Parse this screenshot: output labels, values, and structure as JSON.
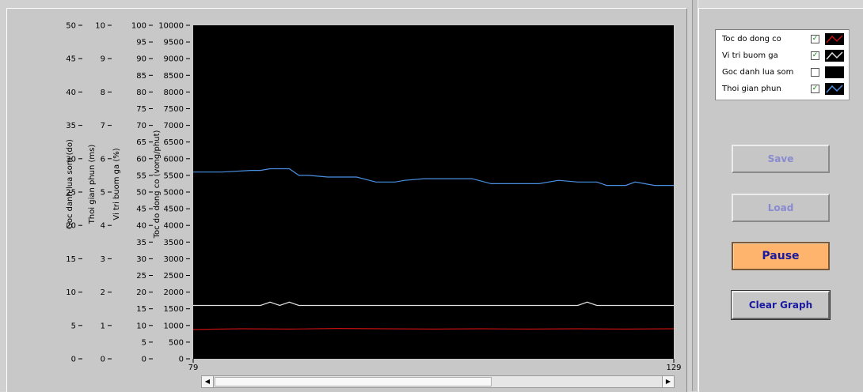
{
  "chart_data": {
    "type": "line",
    "x_range": [
      79,
      129
    ],
    "x_ticks": [
      "79",
      "129"
    ],
    "axes": [
      {
        "title": "Goc danh lua som (do)",
        "ticks": [
          "50",
          "45",
          "40",
          "35",
          "30",
          "25",
          "20",
          "15",
          "10",
          "5",
          "0"
        ],
        "range": [
          0,
          50
        ]
      },
      {
        "title": "Thoi gian phun (ms)",
        "ticks": [
          "10",
          "9",
          "8",
          "7",
          "6",
          "5",
          "4",
          "3",
          "2",
          "1",
          "0"
        ],
        "range": [
          0,
          10
        ]
      },
      {
        "title": "Vi tri buom ga (%)",
        "ticks": [
          "100",
          "95",
          "90",
          "85",
          "80",
          "75",
          "70",
          "65",
          "60",
          "55",
          "50",
          "45",
          "40",
          "35",
          "30",
          "25",
          "20",
          "15",
          "10",
          "5",
          "0"
        ],
        "range": [
          0,
          100
        ]
      },
      {
        "title": "Toc do dong co (vong/phut)",
        "ticks": [
          "10000",
          "9500",
          "9000",
          "8500",
          "8000",
          "7500",
          "7000",
          "6500",
          "6000",
          "5500",
          "5000",
          "4500",
          "4000",
          "3500",
          "3000",
          "2500",
          "2000",
          "1500",
          "1000",
          "500",
          "0"
        ],
        "range": [
          0,
          10000
        ]
      }
    ],
    "series": [
      {
        "name": "Thoi gian phun",
        "color": "#4a90e2",
        "x": [
          79,
          82,
          85,
          86,
          87,
          88,
          89,
          90,
          91,
          93,
          94,
          96,
          98,
          100,
          101,
          103,
          104,
          106,
          108,
          110,
          111,
          113,
          115,
          117,
          119,
          121,
          122,
          124,
          125,
          127,
          129
        ],
        "y": [
          5.6,
          5.6,
          5.65,
          5.65,
          5.7,
          5.7,
          5.7,
          5.5,
          5.5,
          5.45,
          5.45,
          5.45,
          5.3,
          5.3,
          5.35,
          5.4,
          5.4,
          5.4,
          5.4,
          5.25,
          5.25,
          5.25,
          5.25,
          5.35,
          5.3,
          5.3,
          5.2,
          5.2,
          5.3,
          5.2,
          5.2
        ]
      },
      {
        "name": "Vi tri buom ga",
        "color": "#e0e0e0",
        "x": [
          79,
          86,
          87,
          88,
          89,
          90,
          91,
          119,
          120,
          121,
          129
        ],
        "y": [
          16,
          16,
          17,
          16,
          17,
          16,
          16,
          16,
          17,
          16,
          16
        ]
      },
      {
        "name": "Toc do dong co",
        "color": "#c01010",
        "x": [
          79,
          84,
          89,
          94,
          99,
          104,
          109,
          114,
          119,
          124,
          129
        ],
        "y": [
          880,
          900,
          890,
          910,
          900,
          890,
          900,
          890,
          900,
          890,
          900
        ]
      }
    ]
  },
  "legend": {
    "items": [
      {
        "label": "Toc do dong co",
        "checked": true,
        "check_mark": "✓",
        "color": "#c01010"
      },
      {
        "label": "Vi tri buom ga",
        "checked": true,
        "check_mark": "✓",
        "color": "#e0e0e0"
      },
      {
        "label": "Goc danh lua som",
        "checked": false,
        "check_mark": "",
        "color": "#000000"
      },
      {
        "label": "Thoi gian phun",
        "checked": true,
        "check_mark": "✓",
        "color": "#4a90e2"
      }
    ]
  },
  "buttons": {
    "save": "Save",
    "load": "Load",
    "pause": "Pause",
    "clear": "Clear Graph"
  },
  "scrollbar": {
    "left_arrow": "◀",
    "right_arrow": "▶"
  }
}
